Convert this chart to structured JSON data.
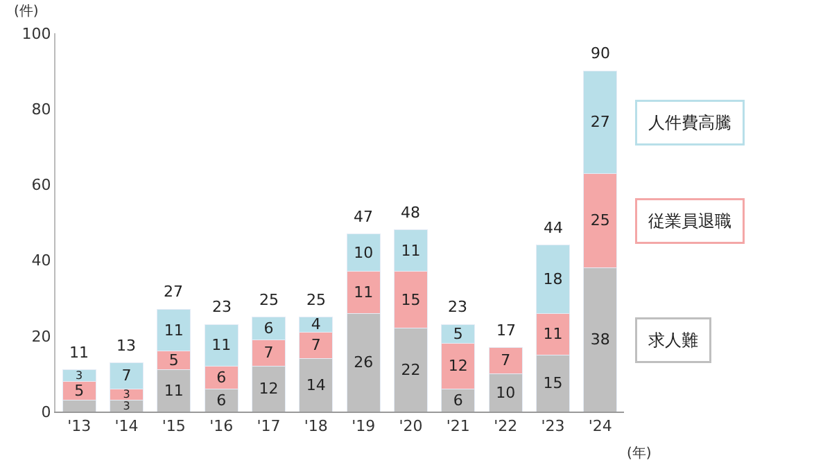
{
  "chart_data": {
    "type": "bar",
    "stacked": true,
    "ylabel": "(件)",
    "xlabel": "(年)",
    "categories": [
      "'13",
      "'14",
      "'15",
      "'16",
      "'17",
      "'18",
      "'19",
      "'20",
      "'21",
      "'22",
      "'23",
      "'24"
    ],
    "series": [
      {
        "name": "求人難",
        "color": "#bfbfbf",
        "values": [
          3,
          3,
          11,
          6,
          12,
          14,
          26,
          22,
          6,
          10,
          15,
          38
        ],
        "value_labels": [
          null,
          "3",
          "11",
          "6",
          "12",
          "14",
          "26",
          "22",
          "6",
          "10",
          "15",
          "38"
        ]
      },
      {
        "name": "従業員退職",
        "color": "#f4a7a7",
        "values": [
          5,
          3,
          5,
          6,
          7,
          7,
          11,
          15,
          12,
          7,
          11,
          25
        ],
        "value_labels": [
          "5",
          "3",
          "5",
          "6",
          "7",
          "7",
          "11",
          "15",
          "12",
          "7",
          "11",
          "25"
        ]
      },
      {
        "name": "人件費高騰",
        "color": "#b8dfe9",
        "values": [
          3,
          7,
          11,
          11,
          6,
          4,
          10,
          11,
          5,
          null,
          18,
          27
        ],
        "value_labels": [
          "3",
          "7",
          "11",
          "11",
          "6",
          "4",
          "10",
          "11",
          "5",
          null,
          "18",
          "27"
        ]
      }
    ],
    "totals": [
      "11",
      "13",
      "27",
      "23",
      "25",
      "25",
      "47",
      "48",
      "23",
      "17",
      "44",
      "90"
    ],
    "ylim": [
      0,
      100
    ],
    "yticks": [
      0,
      20,
      40,
      60,
      80,
      100
    ],
    "legend": false
  }
}
